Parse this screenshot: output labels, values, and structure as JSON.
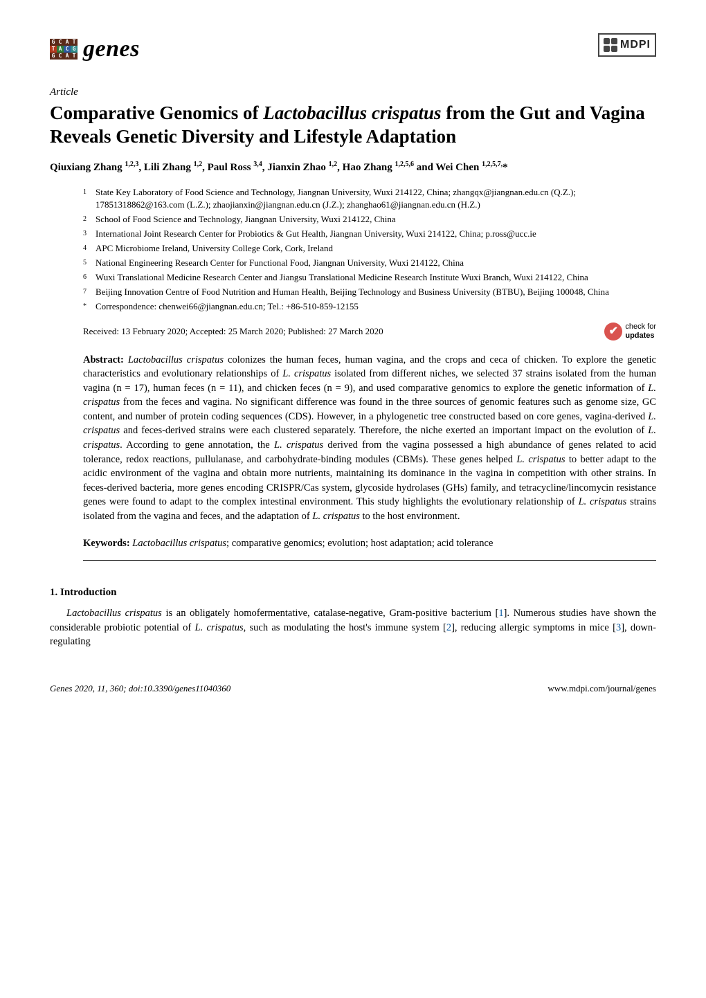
{
  "journal": {
    "name": "genes",
    "logo_cells": [
      {
        "c": "lg-darkred",
        "t": "G"
      },
      {
        "c": "lg-darkred",
        "t": "C"
      },
      {
        "c": "lg-darkred",
        "t": "A"
      },
      {
        "c": "lg-darkred",
        "t": "T"
      },
      {
        "c": "lg-red",
        "t": "T"
      },
      {
        "c": "lg-green",
        "t": "A"
      },
      {
        "c": "lg-blue",
        "t": "C"
      },
      {
        "c": "lg-teal",
        "t": "G"
      },
      {
        "c": "lg-darkred",
        "t": "G"
      },
      {
        "c": "lg-darkred",
        "t": "C"
      },
      {
        "c": "lg-darkred",
        "t": "A"
      },
      {
        "c": "lg-darkred",
        "t": "T"
      }
    ]
  },
  "publisher": {
    "name": "MDPI"
  },
  "article_type": "Article",
  "title_pre": "Comparative Genomics of ",
  "title_species": "Lactobacillus crispatus",
  "title_post": " from the Gut and Vagina Reveals Genetic Diversity and Lifestyle Adaptation",
  "authors_html": "Qiuxiang Zhang <sup>1,2,3</sup>, Lili Zhang <sup>1,2</sup>, Paul Ross <sup>3,4</sup>, Jianxin Zhao <sup>1,2</sup>, Hao Zhang <sup>1,2,5,6</sup> and Wei Chen <sup>1,2,5,7,</sup>*",
  "affiliations": [
    {
      "n": "1",
      "t": "State Key Laboratory of Food Science and Technology, Jiangnan University, Wuxi 214122, China; zhangqx@jiangnan.edu.cn (Q.Z.); 17851318862@163.com (L.Z.); zhaojianxin@jiangnan.edu.cn (J.Z.); zhanghao61@jiangnan.edu.cn (H.Z.)"
    },
    {
      "n": "2",
      "t": "School of Food Science and Technology, Jiangnan University, Wuxi 214122, China"
    },
    {
      "n": "3",
      "t": "International Joint Research Center for Probiotics & Gut Health, Jiangnan University, Wuxi 214122, China; p.ross@ucc.ie"
    },
    {
      "n": "4",
      "t": "APC Microbiome Ireland, University College Cork, Cork, Ireland"
    },
    {
      "n": "5",
      "t": "National Engineering Research Center for Functional Food, Jiangnan University, Wuxi 214122, China"
    },
    {
      "n": "6",
      "t": "Wuxi Translational Medicine Research Center and Jiangsu Translational Medicine Research Institute Wuxi Branch, Wuxi 214122, China"
    },
    {
      "n": "7",
      "t": "Beijing Innovation Centre of Food Nutrition and Human Health, Beijing Technology and Business University (BTBU), Beijing 100048, China"
    },
    {
      "n": "*",
      "t": "Correspondence: chenwei66@jiangnan.edu.cn; Tel.: +86-510-859-12155"
    }
  ],
  "received": "Received: 13 February 2020; Accepted: 25 March 2020; Published: 27 March 2020",
  "updates_badge": {
    "line1": "check for",
    "line2": "updates"
  },
  "abstract_label": "Abstract:",
  "abstract_text": " <em>Lactobacillus crispatus</em> colonizes the human feces, human vagina, and the crops and ceca of chicken. To explore the genetic characteristics and evolutionary relationships of <em>L. crispatus</em> isolated from different niches, we selected 37 strains isolated from the human vagina (n = 17), human feces (n = 11), and chicken feces (n = 9), and used comparative genomics to explore the genetic information of <em>L. crispatus</em> from the feces and vagina. No significant difference was found in the three sources of genomic features such as genome size, GC content, and number of protein coding sequences (CDS). However, in a phylogenetic tree constructed based on core genes, vagina-derived <em>L. crispatus</em> and feces-derived strains were each clustered separately. Therefore, the niche exerted an important impact on the evolution of <em>L. crispatus</em>. According to gene annotation, the <em>L. crispatus</em> derived from the vagina possessed a high abundance of genes related to acid tolerance, redox reactions, pullulanase, and carbohydrate-binding modules (CBMs). These genes helped <em>L. crispatus</em> to better adapt to the acidic environment of the vagina and obtain more nutrients, maintaining its dominance in the vagina in competition with other strains. In feces-derived bacteria, more genes encoding CRISPR/Cas system, glycoside hydrolases (GHs) family, and tetracycline/lincomycin resistance genes were found to adapt to the complex intestinal environment. This study highlights the evolutionary relationship of <em>L. crispatus</em> strains isolated from the vagina and feces, and the adaptation of <em>L. crispatus</em> to the host environment.",
  "keywords_label": "Keywords:",
  "keywords_text": " <em>Lactobacillus crispatus</em>; comparative genomics; evolution; host adaptation; acid tolerance",
  "section_heading": "1. Introduction",
  "intro_para": "<em>Lactobacillus crispatus</em> is an obligately homofermentative, catalase-negative, Gram-positive bacterium [<span class=\"ref-link\">1</span>]. Numerous studies have shown the considerable probiotic potential of <em>L. crispatus</em>, such as modulating the host's immune system [<span class=\"ref-link\">2</span>], reducing allergic symptoms in mice [<span class=\"ref-link\">3</span>], down-regulating",
  "footer": {
    "left": "Genes 2020, 11, 360; doi:10.3390/genes11040360",
    "right": "www.mdpi.com/journal/genes"
  },
  "colors": {
    "text": "#000000",
    "bg": "#ffffff",
    "ref_link": "#0b5aa0",
    "badge": "#d9534f"
  },
  "typography": {
    "body_family": "Palatino Linotype, serif",
    "title_size_pt": 20,
    "body_size_pt": 11,
    "aff_size_pt": 9.5
  }
}
